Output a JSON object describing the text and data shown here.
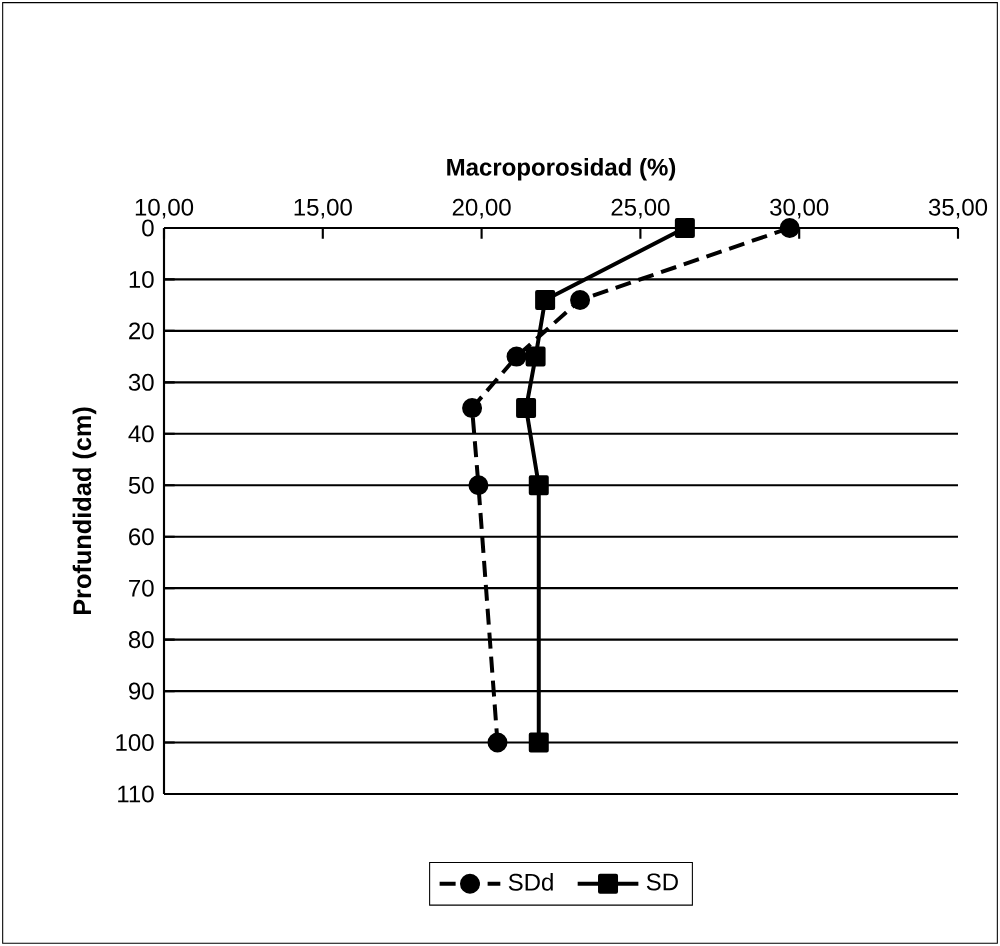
{
  "chart_data": {
    "type": "line",
    "xlabel": "Macroporosidad (%)",
    "ylabel": "Profundidad (cm)",
    "xlim": [
      10,
      35
    ],
    "xticks": [
      {
        "value": 10,
        "label": "10,00"
      },
      {
        "value": 15,
        "label": "15,00"
      },
      {
        "value": 20,
        "label": "20,00"
      },
      {
        "value": 25,
        "label": "25,00"
      },
      {
        "value": 30,
        "label": "30,00"
      },
      {
        "value": 35,
        "label": "35,00"
      }
    ],
    "ylim": [
      110,
      0
    ],
    "yticks": [
      0,
      10,
      20,
      30,
      40,
      50,
      60,
      70,
      80,
      90,
      100,
      110
    ],
    "grid": "y",
    "legend": "bottom",
    "series": [
      {
        "name": "SDd",
        "color": "#000000",
        "marker": "circle",
        "line_style": "dashed",
        "x": [
          29.7,
          23.1,
          21.1,
          19.7,
          19.9,
          20.5
        ],
        "values": [
          0,
          14,
          25,
          35,
          50,
          100
        ]
      },
      {
        "name": "SD",
        "color": "#000000",
        "marker": "square",
        "line_style": "solid",
        "x": [
          26.4,
          22.0,
          21.7,
          21.4,
          21.8,
          21.8
        ],
        "values": [
          0,
          14,
          25,
          35,
          50,
          100
        ]
      }
    ]
  }
}
